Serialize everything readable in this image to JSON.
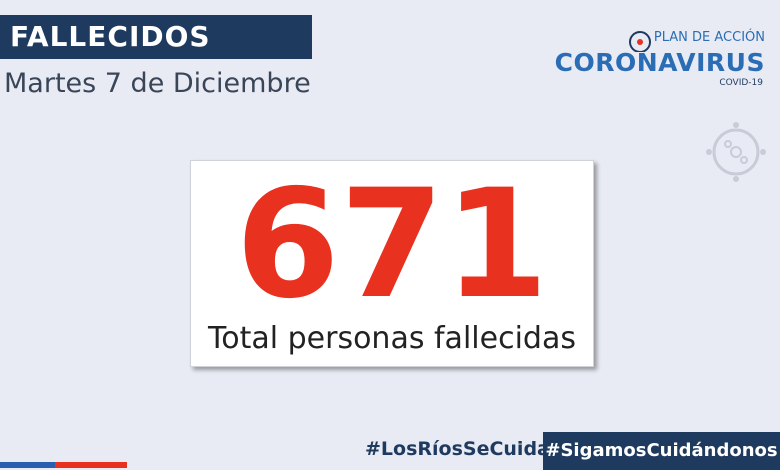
{
  "header": {
    "title": "FALLECIDOS",
    "date": "Martes 7 de Diciembre"
  },
  "logo": {
    "line1": "PLAN DE ACCIÓN",
    "line2": "CORONAVIRUS",
    "line3": "COVID-19"
  },
  "stat": {
    "value": 671,
    "label": "Total personas fallecidas"
  },
  "footer": {
    "hashtag1": "#LosRíosSeCuida",
    "hashtag2": "#SigamosCuidándonos"
  }
}
